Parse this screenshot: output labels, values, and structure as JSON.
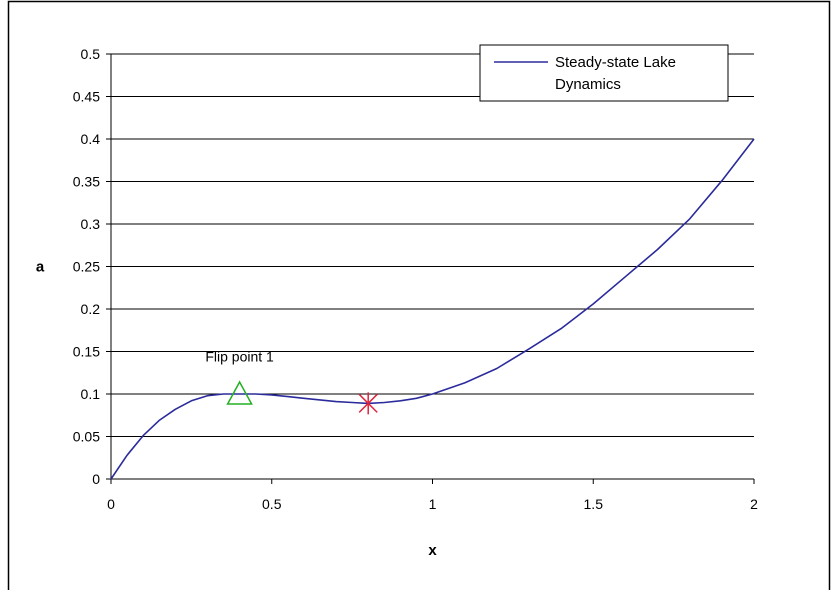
{
  "chart_data": {
    "type": "line",
    "title": "",
    "xlabel": "x",
    "ylabel": "a",
    "xlim": [
      0,
      2
    ],
    "ylim": [
      0,
      0.5
    ],
    "x_ticks": [
      "0",
      "0.5",
      "1",
      "1.5",
      "2"
    ],
    "y_ticks": [
      "0",
      "0.05",
      "0.1",
      "0.15",
      "0.2",
      "0.25",
      "0.3",
      "0.35",
      "0.4",
      "0.45",
      "0.5"
    ],
    "grid": "horizontal major gridlines",
    "legend_position": "top-right",
    "series": [
      {
        "name": "Steady-state Lake Dynamics",
        "color": "#2b2b9c",
        "x": [
          0,
          0.05,
          0.1,
          0.15,
          0.2,
          0.25,
          0.3,
          0.35,
          0.4,
          0.45,
          0.5,
          0.55,
          0.6,
          0.65,
          0.7,
          0.75,
          0.8,
          0.85,
          0.9,
          0.95,
          1.0,
          1.1,
          1.2,
          1.3,
          1.4,
          1.5,
          1.6,
          1.7,
          1.8,
          1.9,
          2.0
        ],
        "y": [
          0,
          0.028,
          0.051,
          0.069,
          0.082,
          0.092,
          0.098,
          0.1,
          0.1,
          0.1,
          0.099,
          0.097,
          0.095,
          0.093,
          0.091,
          0.09,
          0.089,
          0.09,
          0.092,
          0.095,
          0.1,
          0.113,
          0.13,
          0.153,
          0.177,
          0.206,
          0.238,
          0.27,
          0.306,
          0.351,
          0.4
        ]
      }
    ],
    "markers": [
      {
        "name": "flip-point-1",
        "shape": "triangle",
        "color": "#22b022",
        "x": 0.4,
        "y": 0.1
      },
      {
        "name": "unstable-point",
        "shape": "asterisk",
        "color": "#e0243c",
        "x": 0.8,
        "y": 0.089
      }
    ],
    "annotations": [
      {
        "text": "Flip point 1",
        "x": 0.4,
        "y": 0.138
      }
    ]
  }
}
